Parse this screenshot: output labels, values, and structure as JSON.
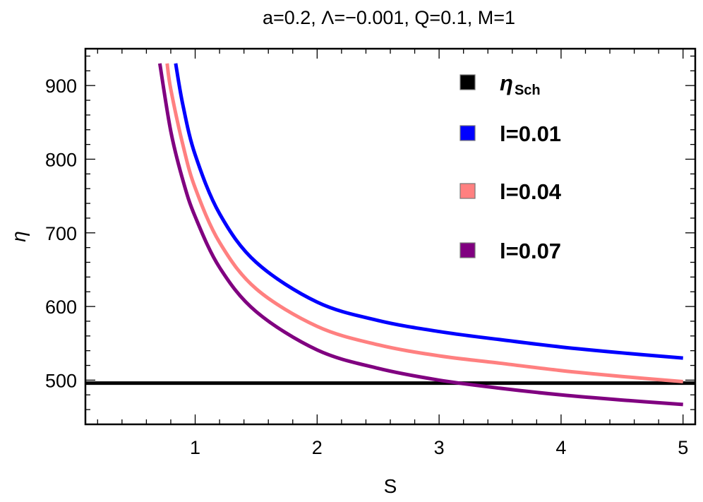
{
  "chart_data": {
    "type": "line",
    "title": "a=0.2,   Λ=−0.001, Q=0.1, M=1",
    "xlabel": "S",
    "ylabel": "η",
    "xlim": [
      0.1,
      5.1
    ],
    "ylim": [
      440,
      950
    ],
    "xticks": [
      1,
      2,
      3,
      4,
      5
    ],
    "xtick_labels": [
      "1",
      "2",
      "3",
      "4",
      "5"
    ],
    "yticks": [
      500,
      600,
      700,
      800,
      900
    ],
    "ytick_labels": [
      "500",
      "600",
      "700",
      "800",
      "900"
    ],
    "grid": false,
    "legend_position": "top-right",
    "series": [
      {
        "name": "η",
        "name_sub": "Sch",
        "color": "#000000",
        "x": [
          0.1,
          5.1
        ],
        "y": [
          496,
          496
        ]
      },
      {
        "name": "l=0.01",
        "color": "#0000ff",
        "x": [
          0.84,
          0.9,
          1.0,
          1.2,
          1.5,
          2.0,
          2.5,
          3.0,
          3.5,
          4.0,
          4.5,
          5.0
        ],
        "y": [
          930,
          873,
          806,
          726,
          660,
          606,
          581,
          566,
          555,
          545,
          537,
          530
        ]
      },
      {
        "name": "l=0.04",
        "color": "#ff8080",
        "x": [
          0.77,
          0.8,
          0.9,
          1.0,
          1.2,
          1.5,
          2.0,
          2.5,
          3.0,
          3.5,
          4.0,
          4.5,
          5.0
        ],
        "y": [
          930,
          895,
          819,
          761,
          687,
          624,
          573,
          548,
          533,
          523,
          513,
          505,
          498
        ]
      },
      {
        "name": "l=0.07",
        "color": "#800080",
        "x": [
          0.71,
          0.8,
          0.9,
          1.0,
          1.2,
          1.5,
          2.0,
          2.5,
          3.0,
          3.5,
          4.0,
          4.5,
          5.0
        ],
        "y": [
          930,
          838,
          771,
          722,
          653,
          593,
          541,
          516,
          500,
          489,
          480,
          473,
          467
        ]
      }
    ]
  }
}
